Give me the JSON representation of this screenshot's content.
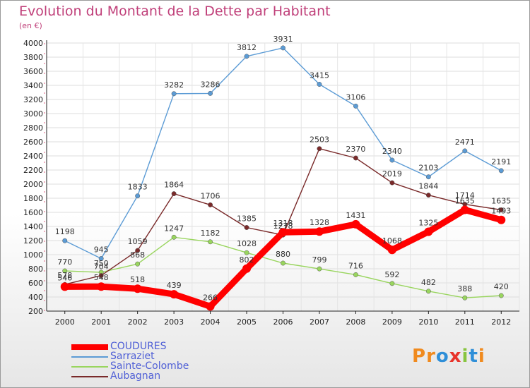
{
  "title": "Evolution du Montant de la Dette par Habitant",
  "subtitle": "(en €)",
  "logo": {
    "letters": [
      "P",
      "r",
      "o",
      "x",
      "i",
      "t",
      "i"
    ],
    "colors": [
      "#f08a1e",
      "#f08a1e",
      "#2f8fd8",
      "#e8332a",
      "#88c540",
      "#2f8fd8",
      "#f08a1e"
    ]
  },
  "chart_data": {
    "type": "line",
    "title": "Evolution du Montant de la Dette par Habitant",
    "ylabel": "(en €)",
    "x": [
      "2000",
      "2001",
      "2002",
      "2003",
      "2004",
      "2005",
      "2006",
      "2007",
      "2008",
      "2009",
      "2010",
      "2011",
      "2012"
    ],
    "ylim": [
      200,
      4000
    ],
    "yticks": [
      200,
      400,
      600,
      800,
      1000,
      1200,
      1400,
      1600,
      1800,
      2000,
      2200,
      2400,
      2600,
      2800,
      3000,
      3200,
      3400,
      3600,
      3800,
      4000
    ],
    "legend_position": "bottom-left",
    "series": [
      {
        "name": "COUDURES",
        "color": "#ff0000",
        "values": [
          546,
          548,
          518,
          439,
          266,
          802,
          1318,
          1328,
          1431,
          1068,
          1325,
          1635,
          1493
        ]
      },
      {
        "name": "Sarraziet",
        "color": "#5b9bd5",
        "values": [
          1198,
          945,
          1833,
          3282,
          3286,
          3812,
          3931,
          3415,
          3106,
          2340,
          2103,
          2471,
          2191
        ]
      },
      {
        "name": "Sainte-Colombe",
        "color": "#99d55e",
        "values": [
          770,
          750,
          868,
          1247,
          1182,
          1028,
          880,
          799,
          716,
          592,
          482,
          388,
          420
        ]
      },
      {
        "name": "Aubagnan",
        "color": "#7a2a2a",
        "values": [
          578,
          704,
          1059,
          1864,
          1706,
          1385,
          1278,
          2503,
          2370,
          2019,
          1844,
          1714,
          1635
        ]
      }
    ]
  }
}
